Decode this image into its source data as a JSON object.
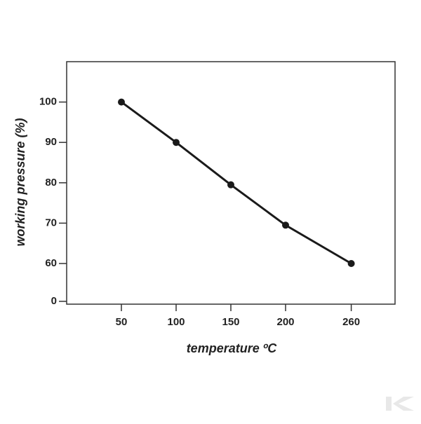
{
  "chart_data": {
    "type": "line",
    "x_label": "temperature ºC",
    "y_label": "working pressure (%)",
    "x": [
      50,
      100,
      150,
      200,
      260
    ],
    "series": [
      {
        "name": "working pressure",
        "color": "#1a1a1a",
        "values": [
          100,
          90,
          79.5,
          69.5,
          60
        ]
      }
    ],
    "xlim": [
      0,
      300
    ],
    "xticks": [
      50,
      100,
      150,
      200,
      260
    ],
    "ylim": [
      0,
      110
    ],
    "yticks": [
      0,
      60,
      70,
      80,
      90,
      100
    ],
    "ybreak": [
      0,
      60
    ]
  }
}
